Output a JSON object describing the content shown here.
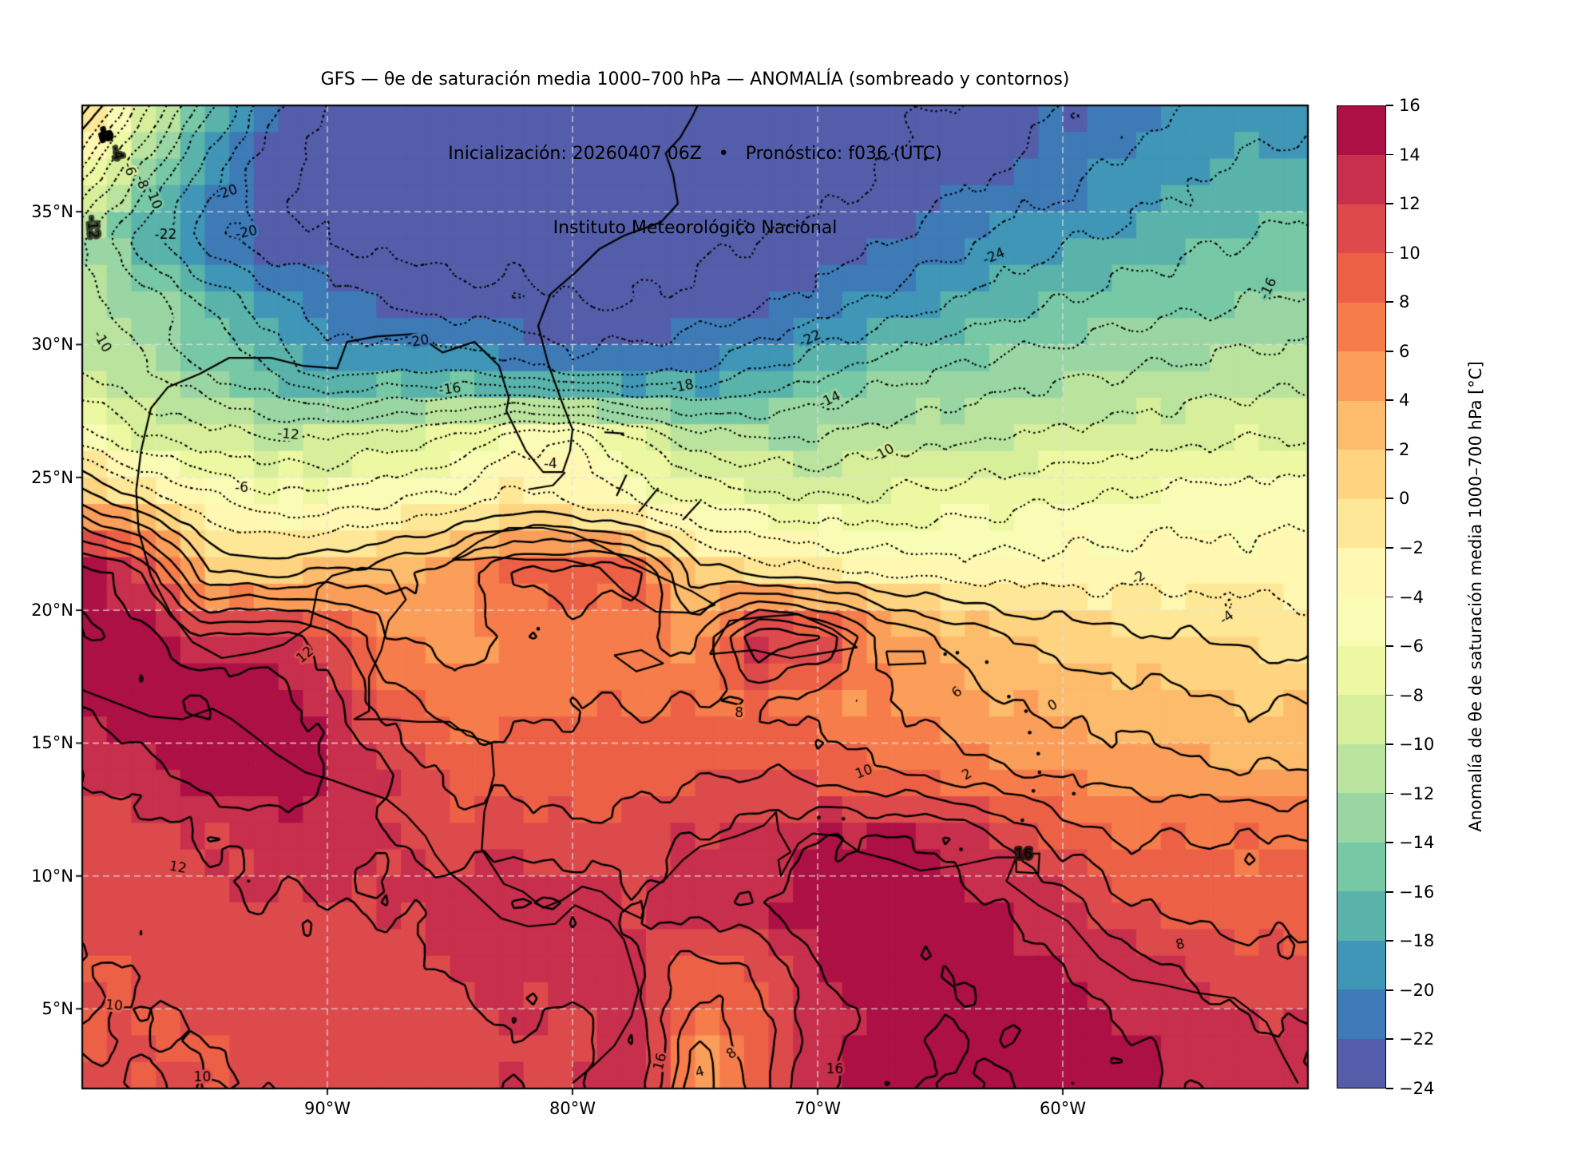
{
  "header": {
    "title": "GFS — θe de saturación media 1000–700 hPa — ANOMALÍA (sombreado y contornos)",
    "subtitle": "Inicialización: 20260407 06Z   •   Pronóstico: f036 (UTC)",
    "institution": "Instituto Meteorológico Nacional"
  },
  "axes": {
    "lat_ticks": [
      {
        "label": "35°N",
        "value": 35
      },
      {
        "label": "30°N",
        "value": 30
      },
      {
        "label": "25°N",
        "value": 25
      },
      {
        "label": "20°N",
        "value": 20
      },
      {
        "label": "15°N",
        "value": 15
      },
      {
        "label": "10°N",
        "value": 10
      },
      {
        "label": "5°N",
        "value": 5
      }
    ],
    "lon_ticks": [
      {
        "label": "90°W",
        "value": -90
      },
      {
        "label": "80°W",
        "value": -80
      },
      {
        "label": "70°W",
        "value": -70
      },
      {
        "label": "60°W",
        "value": -60
      }
    ]
  },
  "colorbar": {
    "label": "Anomalía de θe de saturación media 1000–700 hPa [°C]",
    "min": -24,
    "max": 16,
    "step": 2,
    "tick_values": [
      16,
      14,
      12,
      10,
      8,
      6,
      4,
      2,
      0,
      -2,
      -4,
      -6,
      -8,
      -10,
      -12,
      -14,
      -16,
      -18,
      -20,
      -22,
      -24
    ],
    "tick_labels": [
      "16",
      "14",
      "12",
      "10",
      "8",
      "6",
      "4",
      "2",
      "0",
      "−2",
      "−4",
      "−6",
      "−8",
      "−10",
      "−12",
      "−14",
      "−16",
      "−18",
      "−20",
      "−22",
      "−24"
    ],
    "colors": [
      "#535da9",
      "#3d7ab6",
      "#3f96b7",
      "#59b3ab",
      "#77c8a5",
      "#9ad6a4",
      "#bae39e",
      "#d7ef9b",
      "#ecf8a2",
      "#f9fcb5",
      "#fff7b2",
      "#fee898",
      "#fed481",
      "#fdbb6c",
      "#fb9e5a",
      "#f67d4b",
      "#ec6146",
      "#dd4a4c",
      "#c72f4c",
      "#ac1045"
    ]
  },
  "chart_data": {
    "type": "heatmap",
    "subtype": "filled_contour_map",
    "title": "GFS — θe de saturación media 1000–700 hPa — ANOMALÍA (sombreado y contornos)",
    "units": "°C",
    "extent": {
      "lon_min": -100,
      "lon_max": -50,
      "lat_min": 2,
      "lat_max": 39
    },
    "levels_min": -24,
    "levels_max": 16,
    "levels_step": 2,
    "negative_contour_style": "dotted",
    "positive_contour_style": "solid",
    "gridlines": {
      "lat": [
        5,
        10,
        15,
        20,
        25,
        30,
        35
      ],
      "lon": [
        -90,
        -80,
        -70,
        -60
      ],
      "style": "dashed-lightgray"
    },
    "grid": {
      "lon_start": -100,
      "lon_step": 2.5,
      "n_lon": 21,
      "lat_start": 39,
      "lat_step": -2.5,
      "n_lat": 16,
      "values": [
        [
          3,
          -7,
          -15,
          -21,
          -24,
          -26,
          -26,
          -26,
          -26,
          -26,
          -26,
          -26,
          -25.5,
          -25,
          -24,
          -23,
          -22,
          -21,
          -20,
          -19.5,
          -19
        ],
        [
          -5,
          -13,
          -19,
          -23,
          -25,
          -26,
          -26,
          -26,
          -26,
          -26,
          -25.5,
          -25,
          -25,
          -24,
          -23,
          -22,
          -21,
          -19.5,
          -18.5,
          -17.5,
          -17
        ],
        [
          -12,
          -17,
          -21,
          -23,
          -24,
          -25,
          -25,
          -25,
          -25,
          -25,
          -24.5,
          -24,
          -23.5,
          -22.5,
          -21,
          -19.5,
          -18.5,
          -17.5,
          -16.5,
          -16,
          -15.5
        ],
        [
          -11,
          -13,
          -16,
          -19,
          -21,
          -22,
          -23,
          -23.5,
          -24,
          -24,
          -23.5,
          -22.5,
          -21,
          -19.5,
          -18,
          -17,
          -16,
          -15,
          -14.5,
          -14,
          -13.5
        ],
        [
          -10,
          -12,
          -14,
          -16,
          -19,
          -18,
          -18,
          -19,
          -21,
          -20.5,
          -20,
          -18,
          -16.5,
          -15,
          -14,
          -13,
          -12.5,
          -12,
          -11.5,
          -11,
          -11
        ],
        [
          -5,
          -8,
          -9,
          -10,
          -10,
          -9,
          -8,
          -5,
          -4,
          -8,
          -11,
          -12,
          -12,
          -11,
          -10.5,
          -10,
          -9.5,
          -9,
          -8.5,
          -8,
          -8
        ],
        [
          4,
          0,
          -3,
          -5,
          -5,
          -4,
          -3,
          -1,
          -2,
          -4,
          -6,
          -7,
          -7.5,
          -7.5,
          -7,
          -6.5,
          -6,
          -5.5,
          -5,
          -5,
          -4.5
        ],
        [
          15,
          12,
          2,
          1,
          2,
          3,
          5,
          8,
          9,
          9,
          1,
          -1,
          -2,
          -2.5,
          -3,
          -3,
          -3,
          -3,
          -3,
          -3,
          -3
        ],
        [
          16,
          15,
          12,
          13,
          11,
          6,
          5,
          6,
          7,
          7,
          5,
          14,
          12,
          6,
          4,
          2,
          1,
          0.5,
          0,
          -0.5,
          -1
        ],
        [
          14,
          16,
          16,
          15,
          13,
          9,
          7,
          7,
          8,
          8,
          8,
          8,
          7,
          6,
          5,
          4,
          3.5,
          3,
          2.5,
          2,
          2
        ],
        [
          12,
          13,
          15,
          16,
          14,
          12,
          9.5,
          9,
          9,
          9,
          9.5,
          10,
          9,
          8,
          7,
          6,
          5.5,
          5,
          4.5,
          4,
          4
        ],
        [
          11,
          11,
          12,
          13,
          13,
          12,
          11,
          11,
          10.5,
          11,
          12,
          13,
          14,
          14,
          14,
          12,
          9,
          8,
          8,
          8,
          8
        ],
        [
          10.5,
          11,
          11,
          12,
          12,
          12,
          13,
          14,
          14,
          12,
          13,
          14,
          15,
          15,
          15,
          14,
          13,
          10,
          9,
          9,
          9
        ],
        [
          10,
          10,
          11,
          11,
          11,
          11,
          12,
          13,
          13,
          12,
          9,
          10,
          14,
          15,
          16,
          15,
          14,
          13,
          12,
          11,
          10.5
        ],
        [
          10,
          10,
          10,
          11,
          11,
          11,
          11,
          12,
          11,
          14,
          6,
          9,
          13,
          15,
          16,
          16,
          15,
          14,
          13,
          12.5,
          12
        ],
        [
          10.5,
          10,
          10,
          10,
          11,
          11,
          11,
          12,
          11,
          14,
          4,
          9,
          14,
          16,
          16,
          16,
          16,
          15,
          14,
          13.5,
          13
        ]
      ]
    },
    "contour_labels": [
      {
        "lon": -99.1,
        "lat": 37.9,
        "text": "-2",
        "rot": 75
      },
      {
        "lon": -98.6,
        "lat": 37.2,
        "text": "-4",
        "rot": 75
      },
      {
        "lon": -98.1,
        "lat": 36.6,
        "text": "-6",
        "rot": 72
      },
      {
        "lon": -97.6,
        "lat": 36.1,
        "text": "-8",
        "rot": 70
      },
      {
        "lon": -97.1,
        "lat": 35.5,
        "text": "-10",
        "rot": 68
      },
      {
        "lon": -99.6,
        "lat": 34.4,
        "text": "-12",
        "rot": 85
      },
      {
        "lon": -99.2,
        "lat": 30.1,
        "text": "-10",
        "rot": 60
      },
      {
        "lon": -96.6,
        "lat": 34.1,
        "text": "-22",
        "rot": 0
      },
      {
        "lon": -94.1,
        "lat": 35.7,
        "text": "-20",
        "rot": -20
      },
      {
        "lon": -93.3,
        "lat": 34.2,
        "text": "-20",
        "rot": -12
      },
      {
        "lon": -62.8,
        "lat": 33.3,
        "text": "-24",
        "rot": -22
      },
      {
        "lon": -70.3,
        "lat": 30.2,
        "text": "-22",
        "rot": -25
      },
      {
        "lon": -51.6,
        "lat": 32.1,
        "text": "-16",
        "rot": -65
      },
      {
        "lon": -86.3,
        "lat": 30.1,
        "text": "-20",
        "rot": -10
      },
      {
        "lon": -85.0,
        "lat": 28.3,
        "text": "-16",
        "rot": -8
      },
      {
        "lon": -75.5,
        "lat": 28.4,
        "text": "-18",
        "rot": -12
      },
      {
        "lon": -69.5,
        "lat": 27.9,
        "text": "-14",
        "rot": -25
      },
      {
        "lon": -67.3,
        "lat": 25.9,
        "text": "-10",
        "rot": -30
      },
      {
        "lon": -91.6,
        "lat": 26.6,
        "text": "-12",
        "rot": 5
      },
      {
        "lon": -93.5,
        "lat": 24.6,
        "text": "-6",
        "rot": 0
      },
      {
        "lon": -80.9,
        "lat": 25.5,
        "text": "-4",
        "rot": 0
      },
      {
        "lon": -56.9,
        "lat": 21.2,
        "text": "-2",
        "rot": -35
      },
      {
        "lon": -53.3,
        "lat": 19.7,
        "text": "-4",
        "rot": -35
      },
      {
        "lon": -60.4,
        "lat": 16.4,
        "text": "0",
        "rot": -30
      },
      {
        "lon": -63.9,
        "lat": 13.8,
        "text": "2",
        "rot": -30
      },
      {
        "lon": -73.2,
        "lat": 16.1,
        "text": "8",
        "rot": 0
      },
      {
        "lon": -68.1,
        "lat": 13.9,
        "text": "10",
        "rot": -20
      },
      {
        "lon": -90.9,
        "lat": 18.3,
        "text": "12",
        "rot": -40
      },
      {
        "lon": -96.1,
        "lat": 10.3,
        "text": "12",
        "rot": 10
      },
      {
        "lon": -98.7,
        "lat": 5.1,
        "text": "10",
        "rot": 5
      },
      {
        "lon": -95.1,
        "lat": 2.4,
        "text": "10",
        "rot": 0
      },
      {
        "lon": -61.6,
        "lat": 10.8,
        "text": "16",
        "rot": 0
      },
      {
        "lon": -69.3,
        "lat": 2.7,
        "text": "16",
        "rot": 0
      },
      {
        "lon": -76.4,
        "lat": 3.0,
        "text": "16",
        "rot": -75
      },
      {
        "lon": -74.8,
        "lat": 2.6,
        "text": "4",
        "rot": -15
      },
      {
        "lon": -73.5,
        "lat": 3.3,
        "text": "8",
        "rot": -35
      },
      {
        "lon": -55.2,
        "lat": 7.4,
        "text": "8",
        "rot": -15
      },
      {
        "lon": -64.3,
        "lat": 16.9,
        "text": "6",
        "rot": -40
      }
    ]
  }
}
